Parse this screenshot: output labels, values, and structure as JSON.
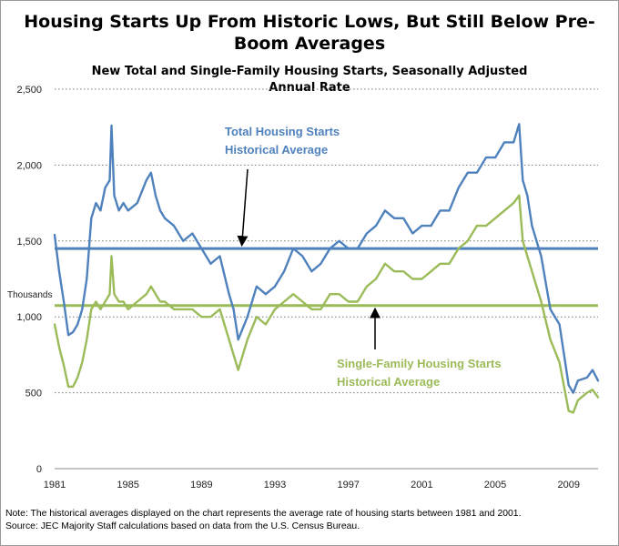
{
  "chart_data": {
    "type": "line",
    "title": "Housing Starts Up From Historic Lows, But Still Below Pre-Boom Averages",
    "subtitle": "New Total and Single-Family Housing Starts, Seasonally Adjusted Annual Rate",
    "ylabel": "Thousands",
    "ylim": [
      0,
      2500
    ],
    "xlim": [
      1981,
      2010.6
    ],
    "yticks": [
      0,
      500,
      1000,
      1500,
      2000,
      2500
    ],
    "ytick_labels": [
      "0",
      "500",
      "1,000",
      "1,500",
      "2,000",
      "2,500"
    ],
    "xticks": [
      1981,
      1985,
      1989,
      1993,
      1997,
      2001,
      2005,
      2009
    ],
    "xtick_labels": [
      "1981",
      "1985",
      "1989",
      "1993",
      "1997",
      "2001",
      "2005",
      "2009"
    ],
    "grid": "horizontal dotted",
    "reference_lines": [
      {
        "name": "Total Housing Starts Historical Average",
        "value": 1450,
        "color": "#4f81bd"
      },
      {
        "name": "Single-Family Housing Starts Historical Average",
        "value": 1075,
        "color": "#9bbb59"
      }
    ],
    "series": [
      {
        "color": "#4f81bd",
        "x": [
          1981.0,
          1981.25,
          1981.5,
          1981.75,
          1982.0,
          1982.25,
          1982.5,
          1982.75,
          1983.0,
          1983.25,
          1983.5,
          1983.75,
          1984.0,
          1984.1,
          1984.25,
          1984.5,
          1984.75,
          1985.0,
          1985.5,
          1986.0,
          1986.25,
          1986.5,
          1986.75,
          1987.0,
          1987.5,
          1988.0,
          1988.5,
          1989.0,
          1989.5,
          1990.0,
          1990.5,
          1990.75,
          1991.0,
          1991.5,
          1992.0,
          1992.5,
          1993.0,
          1993.5,
          1994.0,
          1994.5,
          1995.0,
          1995.5,
          1996.0,
          1996.5,
          1997.0,
          1997.5,
          1998.0,
          1998.5,
          1999.0,
          1999.5,
          2000.0,
          2000.5,
          2001.0,
          2001.5,
          2002.0,
          2002.5,
          2003.0,
          2003.5,
          2004.0,
          2004.5,
          2005.0,
          2005.5,
          2006.0,
          2006.3,
          2006.5,
          2006.75,
          2007.0,
          2007.5,
          2008.0,
          2008.5,
          2009.0,
          2009.25,
          2009.5,
          2010.0,
          2010.3,
          2010.6
        ],
        "values": [
          1540,
          1300,
          1100,
          880,
          900,
          950,
          1050,
          1250,
          1650,
          1750,
          1700,
          1850,
          1900,
          2260,
          1800,
          1700,
          1750,
          1700,
          1750,
          1900,
          1950,
          1800,
          1700,
          1650,
          1600,
          1500,
          1550,
          1450,
          1350,
          1400,
          1150,
          1050,
          850,
          1000,
          1200,
          1150,
          1200,
          1300,
          1450,
          1400,
          1300,
          1350,
          1450,
          1500,
          1450,
          1450,
          1550,
          1600,
          1700,
          1650,
          1650,
          1550,
          1600,
          1600,
          1700,
          1700,
          1850,
          1950,
          1950,
          2050,
          2050,
          2150,
          2150,
          2270,
          1900,
          1800,
          1600,
          1400,
          1050,
          950,
          550,
          500,
          580,
          600,
          650,
          580
        ]
      },
      {
        "color": "#9bbb59",
        "x": [
          1981.0,
          1981.25,
          1981.5,
          1981.75,
          1982.0,
          1982.25,
          1982.5,
          1982.75,
          1983.0,
          1983.25,
          1983.5,
          1983.75,
          1984.0,
          1984.1,
          1984.25,
          1984.5,
          1984.75,
          1985.0,
          1985.5,
          1986.0,
          1986.25,
          1986.5,
          1986.75,
          1987.0,
          1987.5,
          1988.0,
          1988.5,
          1989.0,
          1989.5,
          1990.0,
          1990.5,
          1990.75,
          1991.0,
          1991.5,
          1992.0,
          1992.5,
          1993.0,
          1993.5,
          1994.0,
          1994.5,
          1995.0,
          1995.5,
          1996.0,
          1996.5,
          1997.0,
          1997.5,
          1998.0,
          1998.5,
          1999.0,
          1999.5,
          2000.0,
          2000.5,
          2001.0,
          2001.5,
          2002.0,
          2002.5,
          2003.0,
          2003.5,
          2004.0,
          2004.5,
          2005.0,
          2005.5,
          2006.0,
          2006.3,
          2006.5,
          2006.75,
          2007.0,
          2007.5,
          2008.0,
          2008.5,
          2009.0,
          2009.25,
          2009.5,
          2010.0,
          2010.3,
          2010.6
        ],
        "values": [
          950,
          800,
          680,
          540,
          540,
          600,
          700,
          850,
          1050,
          1100,
          1050,
          1100,
          1150,
          1400,
          1150,
          1100,
          1100,
          1050,
          1100,
          1150,
          1200,
          1150,
          1100,
          1100,
          1050,
          1050,
          1050,
          1000,
          1000,
          1050,
          850,
          750,
          650,
          850,
          1000,
          950,
          1050,
          1100,
          1150,
          1100,
          1050,
          1050,
          1150,
          1150,
          1100,
          1100,
          1200,
          1250,
          1350,
          1300,
          1300,
          1250,
          1250,
          1300,
          1350,
          1350,
          1450,
          1500,
          1600,
          1600,
          1650,
          1700,
          1750,
          1800,
          1500,
          1400,
          1300,
          1100,
          850,
          700,
          380,
          370,
          450,
          500,
          520,
          470
        ]
      }
    ],
    "annotations": [
      {
        "lines": [
          "Total Housing Starts",
          "Historical Average"
        ],
        "color": "#4f81bd"
      },
      {
        "lines": [
          "Single-Family Housing Starts",
          "Historical Average"
        ],
        "color": "#9bbb59"
      }
    ],
    "note": "Note: The historical averages displayed on the chart represents the average rate of housing starts between 1981 and 2001.",
    "source": "Source: JEC Majority Staff calculations based on data from the U.S. Census Bureau."
  }
}
